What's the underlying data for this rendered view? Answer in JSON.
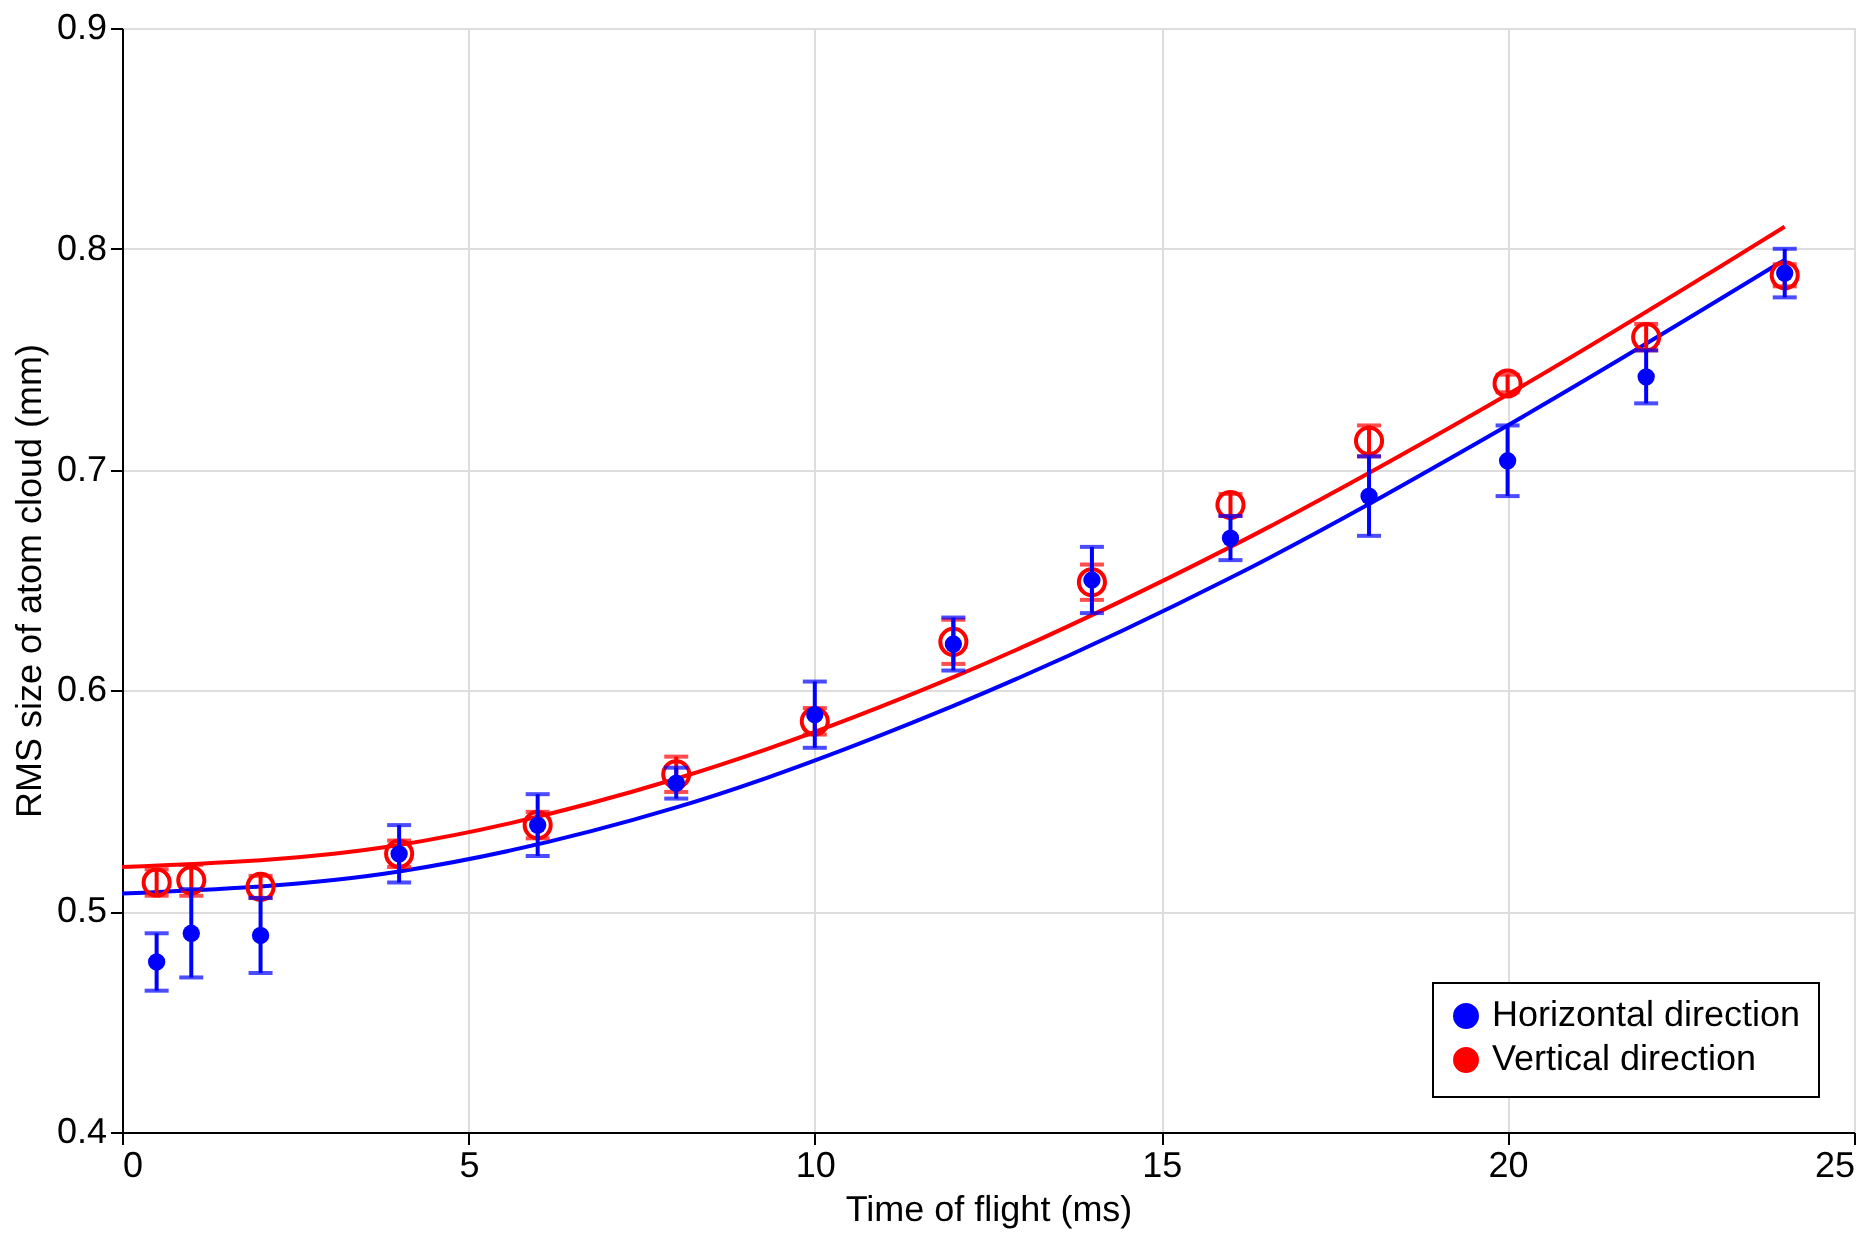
{
  "chart_data": {
    "type": "scatter",
    "xlabel": "Time of flight (ms)",
    "ylabel": "RMS size of atom cloud (mm)",
    "xlim": [
      0,
      25
    ],
    "xticks": [
      0,
      5,
      10,
      15,
      20,
      25
    ],
    "ylim": [
      0.4,
      0.9
    ],
    "yticks": [
      0.4,
      0.5,
      0.6,
      0.7,
      0.8,
      0.9
    ],
    "grid": true,
    "legend": "bottom right",
    "marker": "circle",
    "series": [
      {
        "name": "Horizontal direction",
        "color": "#0000ff",
        "x": [
          0.5,
          1,
          2,
          4,
          6,
          8,
          10,
          12,
          14,
          16,
          18,
          20,
          22,
          24
        ],
        "values": [
          0.477,
          0.49,
          0.489,
          0.526,
          0.539,
          0.558,
          0.589,
          0.621,
          0.65,
          0.669,
          0.688,
          0.704,
          0.742,
          0.789
        ],
        "errors": [
          0.013,
          0.02,
          0.017,
          0.013,
          0.014,
          0.007,
          0.015,
          0.012,
          0.015,
          0.01,
          0.018,
          0.016,
          0.012,
          0.011
        ]
      },
      {
        "name": "Vertical direction",
        "color": "#ff0000",
        "x": [
          0.5,
          1,
          2,
          4,
          6,
          8,
          10,
          12,
          14,
          16,
          18,
          20,
          22,
          24
        ],
        "values": [
          0.513,
          0.514,
          0.511,
          0.526,
          0.539,
          0.562,
          0.586,
          0.622,
          0.649,
          0.684,
          0.713,
          0.739,
          0.76,
          0.788
        ],
        "errors": [
          0.006,
          0.007,
          0.005,
          0.006,
          0.006,
          0.008,
          0.006,
          0.01,
          0.008,
          0.005,
          0.007,
          0.004,
          0.006,
          0.005
        ]
      },
      {
        "type": "line",
        "marker": "none",
        "line_style": "solid",
        "color": "#0000ff",
        "x": [
          0,
          4,
          8,
          12,
          16,
          20,
          24
        ],
        "values": [
          0.508,
          0.518,
          0.547,
          0.593,
          0.651,
          0.72,
          0.795
        ]
      },
      {
        "type": "line",
        "marker": "none",
        "line_style": "solid",
        "color": "#ff0000",
        "x": [
          0,
          4,
          8,
          12,
          16,
          20,
          24
        ],
        "values": [
          0.52,
          0.53,
          0.56,
          0.606,
          0.665,
          0.734,
          0.81
        ]
      }
    ]
  }
}
